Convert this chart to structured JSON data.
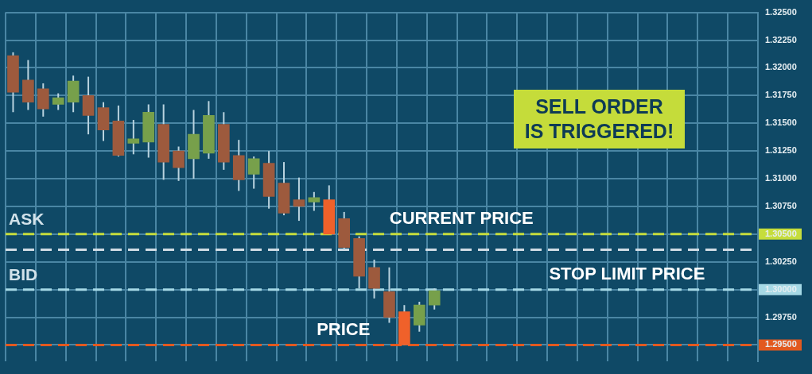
{
  "chart_data": {
    "type": "candlestick",
    "categories": [
      null,
      null,
      null,
      null,
      null,
      null,
      null,
      null,
      null,
      null,
      null,
      null,
      null,
      null,
      null,
      null,
      null,
      null,
      null,
      null,
      null,
      null,
      null,
      null,
      null,
      null,
      null,
      null,
      null,
      null,
      null,
      null,
      null,
      null,
      null,
      null,
      null,
      null,
      null,
      null,
      null,
      null,
      null,
      null,
      null,
      null,
      null,
      null,
      null,
      null
    ],
    "ohlc": [
      [
        1.3211,
        1.3214,
        1.316,
        1.3178
      ],
      [
        1.3189,
        1.3207,
        1.3162,
        1.3169
      ],
      [
        1.3181,
        1.3186,
        1.3156,
        1.3163
      ],
      [
        1.3167,
        1.3177,
        1.3162,
        1.3173
      ],
      [
        1.3169,
        1.3193,
        1.316,
        1.3188
      ],
      [
        1.3175,
        1.3192,
        1.314,
        1.3157
      ],
      [
        1.3164,
        1.3169,
        1.3134,
        1.3144
      ],
      [
        1.3152,
        1.3166,
        1.312,
        1.3121
      ],
      [
        1.3132,
        1.3153,
        1.3122,
        1.3136
      ],
      [
        1.3133,
        1.3167,
        1.3119,
        1.316
      ],
      [
        1.3149,
        1.3167,
        1.3099,
        1.3115
      ],
      [
        1.3125,
        1.3129,
        1.3098,
        1.311
      ],
      [
        1.3118,
        1.3162,
        1.31,
        1.314
      ],
      [
        1.3123,
        1.317,
        1.3118,
        1.3157
      ],
      [
        1.3149,
        1.316,
        1.3108,
        1.3115
      ],
      [
        1.3121,
        1.3135,
        1.3089,
        1.3099
      ],
      [
        1.3104,
        1.312,
        1.3091,
        1.3118
      ],
      [
        1.3114,
        1.3125,
        1.3073,
        1.3084
      ],
      [
        1.3096,
        1.3115,
        1.3067,
        1.3069
      ],
      [
        1.3081,
        1.3101,
        1.3062,
        1.3075
      ],
      [
        1.3079,
        1.3088,
        1.3071,
        1.3083
      ],
      [
        1.3081,
        1.3094,
        1.305,
        1.305
      ],
      [
        1.3064,
        1.307,
        1.3036,
        1.3038
      ],
      [
        1.3046,
        1.3048,
        1.3001,
        1.3012
      ],
      [
        1.302,
        1.3027,
        1.2992,
        1.3001
      ],
      [
        1.2998,
        1.302,
        1.297,
        1.2975
      ],
      [
        1.298,
        1.2986,
        1.295,
        1.295
      ],
      [
        1.2968,
        1.2989,
        1.2962,
        1.2986
      ],
      [
        1.2986,
        1.3001,
        1.2982,
        1.2999
      ],
      null,
      null,
      null,
      null,
      null,
      null,
      null,
      null,
      null,
      null,
      null,
      null,
      null,
      null,
      null,
      null,
      null,
      null,
      null,
      null,
      null
    ],
    "colors": [
      "#9d5a3d",
      "#9d5a3d",
      "#9d5a3d",
      "#77a04b",
      "#77a04b",
      "#9d5a3d",
      "#9d5a3d",
      "#9d5a3d",
      "#77a04b",
      "#77a04b",
      "#9d5a3d",
      "#9d5a3d",
      "#77a04b",
      "#77a04b",
      "#9d5a3d",
      "#9d5a3d",
      "#77a04b",
      "#9d5a3d",
      "#9d5a3d",
      "#9d5a3d",
      "#77a04b",
      "#f0612a",
      "#9d5a3d",
      "#9d5a3d",
      "#9d5a3d",
      "#9d5a3d",
      "#f0612a",
      "#77a04b",
      "#77a04b",
      null,
      null,
      null,
      null,
      null,
      null,
      null,
      null,
      null,
      null,
      null,
      null,
      null,
      null,
      null,
      null,
      null,
      null,
      null,
      null,
      null
    ],
    "ylim": [
      1.2935,
      1.325
    ],
    "yticks": [
      {
        "value": 1.295,
        "label": "1.29500"
      },
      {
        "value": 1.2975,
        "label": "1.29750"
      },
      {
        "value": 1.3,
        "label": "1.30000"
      },
      {
        "value": 1.3025,
        "label": "1.30250"
      },
      {
        "value": 1.305,
        "label": "1.30500"
      },
      {
        "value": 1.3075,
        "label": "1.30750"
      },
      {
        "value": 1.31,
        "label": "1.31000"
      },
      {
        "value": 1.3125,
        "label": "1.31250"
      },
      {
        "value": 1.315,
        "label": "1.31500"
      },
      {
        "value": 1.3175,
        "label": "1.31750"
      },
      {
        "value": 1.32,
        "label": "1.32000"
      },
      {
        "value": 1.3225,
        "label": "1.32250"
      },
      {
        "value": 1.325,
        "label": "1.32500"
      }
    ],
    "ref_lines": [
      {
        "axis": "y",
        "value": 1.305,
        "label": "ASK",
        "color": "#c6dd3c",
        "line_style": "dashed"
      },
      {
        "axis": "y",
        "value": 1.3036,
        "color": "#d0dce4",
        "line_style": "dashed"
      },
      {
        "axis": "y",
        "value": 1.3,
        "label": "BID",
        "color": "#a6d9e6",
        "line_style": "dashed"
      },
      {
        "axis": "y",
        "value": 1.295,
        "color": "#e2591f",
        "line_style": "dashed"
      }
    ],
    "annotations": [
      "SELL ORDER IS TRIGGERED!",
      {
        "text": "CURRENT PRICE",
        "y": 1.305
      },
      {
        "text": "STOP LIMIT PRICE",
        "y": 1.3
      },
      {
        "text": "PRICE",
        "y": 1.295
      }
    ],
    "grid": true,
    "tick_labels": "y"
  }
}
